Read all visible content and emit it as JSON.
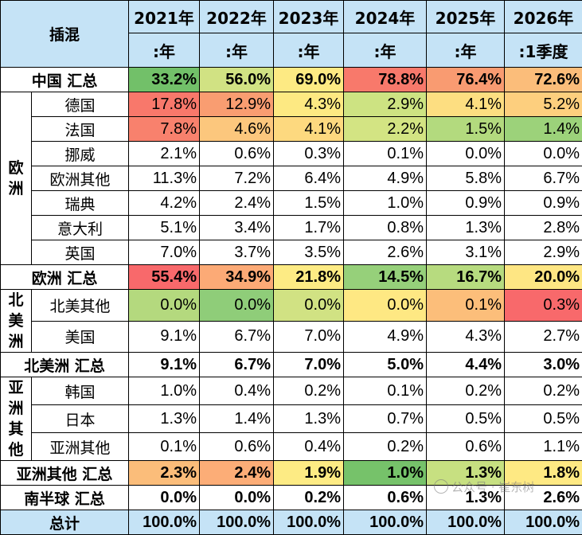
{
  "header": {
    "corner": "插混",
    "years": [
      "2021年",
      "2022年",
      "2023年",
      "2024年",
      "2025年",
      "2026年"
    ],
    "periods": [
      ":年",
      ":年",
      ":年",
      ":年",
      ":年",
      ":1季度"
    ]
  },
  "regions": {
    "europe": "欧洲",
    "north_america": "北美洲",
    "asia_other": "亚洲其他"
  },
  "rows": {
    "china_total": {
      "label": "中国 汇总",
      "values": [
        "33.2%",
        "56.0%",
        "69.0%",
        "78.8%",
        "76.4%",
        "72.6%"
      ]
    },
    "germany": {
      "label": "德国",
      "values": [
        "17.8%",
        "12.9%",
        "4.3%",
        "2.9%",
        "4.1%",
        "5.2%"
      ]
    },
    "france": {
      "label": "法国",
      "values": [
        "7.8%",
        "4.6%",
        "4.1%",
        "2.2%",
        "1.5%",
        "1.4%"
      ]
    },
    "norway": {
      "label": "挪威",
      "values": [
        "2.1%",
        "0.6%",
        "0.3%",
        "0.1%",
        "0.0%",
        "0.0%"
      ]
    },
    "europe_other": {
      "label": "欧洲其他",
      "values": [
        "11.3%",
        "7.2%",
        "6.4%",
        "4.9%",
        "5.8%",
        "6.7%"
      ]
    },
    "sweden": {
      "label": "瑞典",
      "values": [
        "4.2%",
        "2.4%",
        "1.5%",
        "1.0%",
        "0.9%",
        "0.9%"
      ]
    },
    "italy": {
      "label": "意大利",
      "values": [
        "5.1%",
        "3.4%",
        "1.7%",
        "0.8%",
        "1.3%",
        "2.8%"
      ]
    },
    "uk": {
      "label": "英国",
      "values": [
        "7.0%",
        "3.7%",
        "3.5%",
        "2.6%",
        "3.1%",
        "2.9%"
      ]
    },
    "europe_total": {
      "label": "欧洲 汇总",
      "values": [
        "55.4%",
        "34.9%",
        "21.8%",
        "14.5%",
        "16.7%",
        "20.0%"
      ]
    },
    "na_other": {
      "label": "北美其他",
      "values": [
        "0.0%",
        "0.0%",
        "0.0%",
        "0.0%",
        "0.1%",
        "0.3%"
      ]
    },
    "usa": {
      "label": "美国",
      "values": [
        "9.1%",
        "6.7%",
        "7.0%",
        "4.9%",
        "4.3%",
        "2.7%"
      ]
    },
    "na_total": {
      "label": "北美洲 汇总",
      "values": [
        "9.1%",
        "6.7%",
        "7.0%",
        "5.0%",
        "4.4%",
        "3.0%"
      ]
    },
    "korea": {
      "label": "韩国",
      "values": [
        "1.0%",
        "0.4%",
        "0.2%",
        "0.1%",
        "0.2%",
        "0.2%"
      ]
    },
    "japan": {
      "label": "日本",
      "values": [
        "1.3%",
        "1.4%",
        "1.3%",
        "0.7%",
        "0.5%",
        "0.5%"
      ]
    },
    "asia_other_row": {
      "label": "亚洲其他",
      "values": [
        "0.1%",
        "0.6%",
        "0.4%",
        "0.2%",
        "0.6%",
        "1.1%"
      ]
    },
    "asia_other_total": {
      "label": "亚洲其他 汇总",
      "values": [
        "2.3%",
        "2.4%",
        "1.9%",
        "1.0%",
        "1.3%",
        "1.8%"
      ]
    },
    "southern_total": {
      "label": "南半球 汇总",
      "values": [
        "0.0%",
        "0.0%",
        "0.2%",
        "0.6%",
        "1.3%",
        "2.6%"
      ]
    },
    "grand_total": {
      "label": "总计",
      "values": [
        "100.0%",
        "100.0%",
        "100.0%",
        "100.0%",
        "100.0%",
        "100.0%"
      ]
    }
  },
  "cell_colors": {
    "china_total": [
      "#72c069",
      "#d1e283",
      "#fdea83",
      "#f8796b",
      "#f99b71",
      "#fbbd7a"
    ],
    "germany": [
      "#f8786b",
      "#f99d71",
      "#fde982",
      "#cde382",
      "#fdde81",
      "#fdcf7e"
    ],
    "france": [
      "#f8816d",
      "#fcc77d",
      "#fdd97f",
      "#d3e483",
      "#b3da7e",
      "#9cd27a"
    ],
    "europe_total": [
      "#f8696b",
      "#fcaa76",
      "#fdeb84",
      "#96d07a",
      "#b7db7f",
      "#fee683"
    ],
    "na_other": [
      "#b4d97e",
      "#8fcd79",
      "#d1e283",
      "#fee883",
      "#fcbe7a",
      "#f8696b"
    ],
    "asia_other_total": [
      "#fbbd7a",
      "#fcad77",
      "#fdeb84",
      "#76c26a",
      "#c7e081",
      "#fee983"
    ]
  },
  "watermark": "公众号 · 崔东树"
}
